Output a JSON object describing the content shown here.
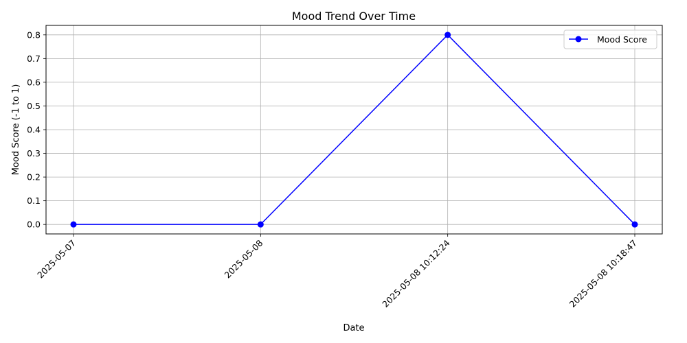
{
  "chart_data": {
    "type": "line",
    "title": "Mood Trend Over Time",
    "xlabel": "Date",
    "ylabel": "Mood Score (-1 to 1)",
    "categories": [
      "2025-05-07",
      "2025-05-08",
      "2025-05-08 10:12:24",
      "2025-05-08 10:18:47"
    ],
    "series": [
      {
        "name": "Mood Score",
        "values": [
          0.0,
          0.0,
          0.8,
          0.0
        ],
        "color": "#0000ff",
        "marker": "circle"
      }
    ],
    "yticks": [
      "0.0",
      "0.1",
      "0.2",
      "0.3",
      "0.4",
      "0.5",
      "0.6",
      "0.7",
      "0.8"
    ],
    "ylim": [
      -0.04,
      0.84
    ],
    "grid": true,
    "legend_position": "top-right"
  }
}
